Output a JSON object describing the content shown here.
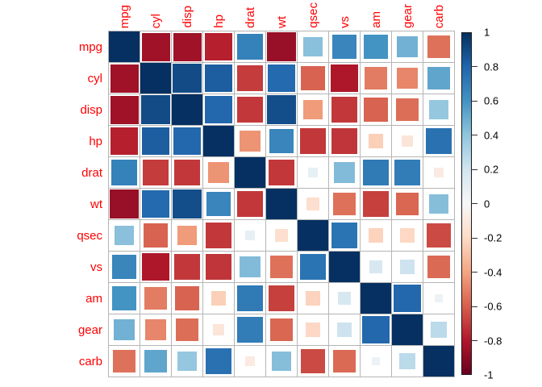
{
  "figure": {
    "background": "#ffffff"
  },
  "chart_data": {
    "type": "heatmap",
    "subtype": "correlation-matrix",
    "mark": "square",
    "size_encoding": "square side proportional to sqrt(|value|)",
    "title": "",
    "variables": [
      "mpg",
      "cyl",
      "disp",
      "hp",
      "drat",
      "wt",
      "qsec",
      "vs",
      "am",
      "gear",
      "carb"
    ],
    "matrix": [
      [
        1.0,
        -0.85,
        -0.85,
        -0.78,
        0.68,
        -0.87,
        0.42,
        0.66,
        0.6,
        0.48,
        -0.55
      ],
      [
        -0.85,
        1.0,
        0.9,
        0.83,
        -0.7,
        0.78,
        -0.59,
        -0.81,
        -0.52,
        -0.49,
        0.53
      ],
      [
        -0.85,
        0.9,
        1.0,
        0.79,
        -0.71,
        0.89,
        -0.43,
        -0.71,
        -0.59,
        -0.56,
        0.39
      ],
      [
        -0.78,
        0.83,
        0.79,
        1.0,
        -0.45,
        0.66,
        -0.71,
        -0.72,
        -0.24,
        -0.13,
        0.75
      ],
      [
        0.68,
        -0.7,
        -0.71,
        -0.45,
        1.0,
        -0.71,
        0.09,
        0.44,
        0.71,
        0.7,
        -0.09
      ],
      [
        -0.87,
        0.78,
        0.89,
        0.66,
        -0.71,
        1.0,
        -0.17,
        -0.55,
        -0.69,
        -0.58,
        0.43
      ],
      [
        0.42,
        -0.59,
        -0.43,
        -0.71,
        0.09,
        -0.17,
        1.0,
        0.74,
        -0.23,
        -0.21,
        -0.66
      ],
      [
        0.66,
        -0.81,
        -0.71,
        -0.72,
        0.44,
        -0.55,
        0.74,
        1.0,
        0.17,
        0.21,
        -0.57
      ],
      [
        0.6,
        -0.52,
        -0.59,
        -0.24,
        0.71,
        -0.69,
        -0.23,
        0.17,
        1.0,
        0.79,
        0.06
      ],
      [
        0.48,
        -0.49,
        -0.56,
        -0.13,
        0.7,
        -0.58,
        -0.21,
        0.21,
        0.79,
        1.0,
        0.27
      ],
      [
        -0.55,
        0.53,
        0.39,
        0.75,
        -0.09,
        0.43,
        -0.66,
        -0.57,
        0.06,
        0.27,
        1.0
      ]
    ],
    "value_range": [
      -1,
      1
    ],
    "grid_on": true,
    "grid_color": "#b5b5b5",
    "cell_background": "#ffffff",
    "label_color": "#ff0000",
    "color_palette": {
      "name": "RdBu-reversed (dark red = -1, white = 0, dark blue = +1)",
      "stops": [
        "#67001F",
        "#B2182B",
        "#D6604D",
        "#F4A582",
        "#FDDBC7",
        "#F7F7F7",
        "#D1E5F0",
        "#92C5DE",
        "#4393C3",
        "#2166AC",
        "#053061"
      ]
    },
    "colorbar": {
      "position": "right",
      "min": -1,
      "max": 1,
      "tick_values": [
        1,
        0.8,
        0.6,
        0.4,
        0.2,
        0,
        -0.2,
        -0.4,
        -0.6,
        -0.8,
        -1
      ],
      "tick_labels": [
        "1",
        "0.8",
        "0.6",
        "0.4",
        "0.2",
        "0",
        "-0.2",
        "-0.4",
        "-0.6",
        "-0.8",
        "-1"
      ],
      "text_color": "#000000",
      "border_color": "#1a1a1a",
      "tick_color": "#333333"
    }
  }
}
